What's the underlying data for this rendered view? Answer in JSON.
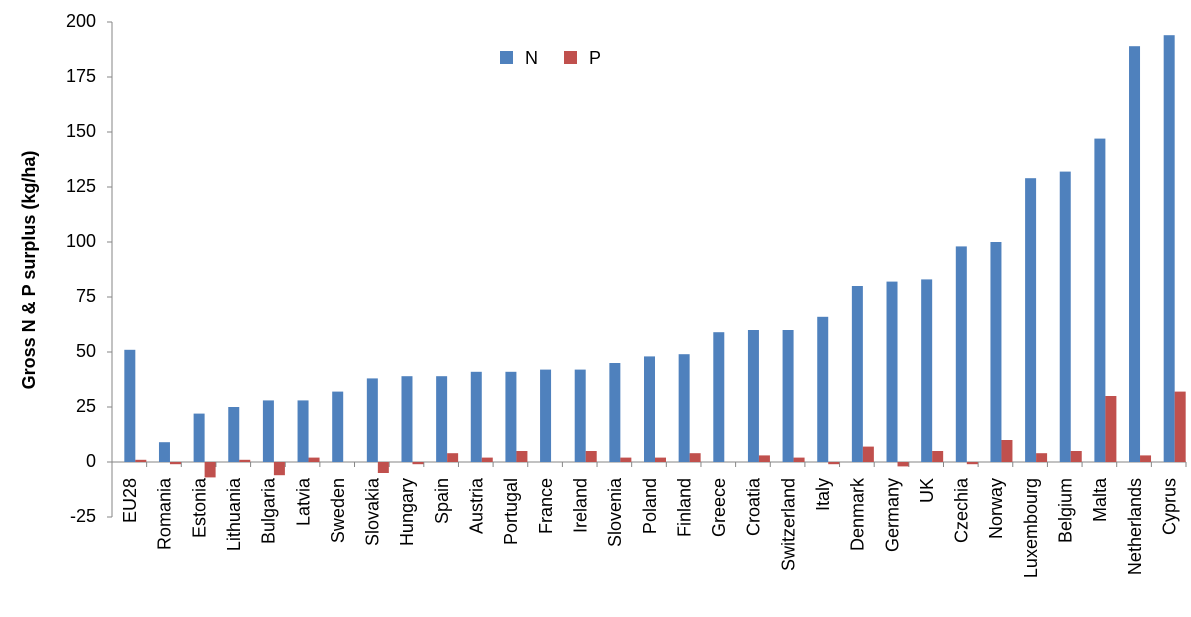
{
  "chart_data": {
    "type": "bar",
    "y_label": "Gross N  & P surplus (kg/ha)",
    "categories": [
      "EU28",
      "Romania",
      "Estonia",
      "Lithuania",
      "Bulgaria",
      "Latvia",
      "Sweden",
      "Slovakia",
      "Hungary",
      "Spain",
      "Austria",
      "Portugal",
      "France",
      "Ireland",
      "Slovenia",
      "Poland",
      "Finland",
      "Greece",
      "Croatia",
      "Switzerland",
      "Italy",
      "Denmark",
      "Germany",
      "UK",
      "Czechia",
      "Norway",
      "Luxembourg",
      "Belgium",
      "Malta",
      "Netherlands",
      "Cyprus"
    ],
    "series": [
      {
        "name": "N",
        "color": "#4f81bd",
        "values": [
          51,
          9,
          22,
          25,
          28,
          28,
          32,
          38,
          39,
          39,
          41,
          41,
          42,
          42,
          45,
          48,
          49,
          59,
          60,
          60,
          66,
          80,
          82,
          83,
          98,
          100,
          129,
          132,
          147,
          189,
          194
        ]
      },
      {
        "name": "P",
        "color": "#c0504d",
        "values": [
          1,
          -1,
          -7,
          1,
          -6,
          2,
          0,
          -5,
          -1,
          4,
          2,
          5,
          0,
          5,
          2,
          2,
          4,
          0,
          3,
          2,
          -1,
          7,
          -2,
          5,
          -1,
          10,
          4,
          5,
          30,
          3,
          32
        ]
      }
    ],
    "ylim": [
      -25,
      200
    ],
    "yticks": [
      -25,
      0,
      25,
      50,
      75,
      100,
      125,
      150,
      175,
      200
    ],
    "grid": false,
    "legend": "top"
  }
}
